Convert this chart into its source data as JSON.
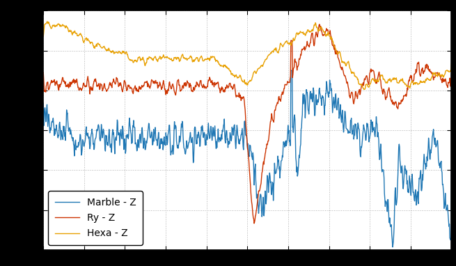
{
  "title": "",
  "background_color": "#000000",
  "plot_background": "#ffffff",
  "grid_color": "#b0b0b0",
  "line_width": 1.0,
  "legend_labels": [
    "Marble - Z",
    "Ry - Z",
    "Hexa - Z"
  ],
  "legend_colors": [
    "#1f77b4",
    "#cc3300",
    "#e8a000"
  ],
  "n_points": 1000,
  "ylim": [
    -100,
    20
  ],
  "xlim": [
    0,
    1
  ]
}
